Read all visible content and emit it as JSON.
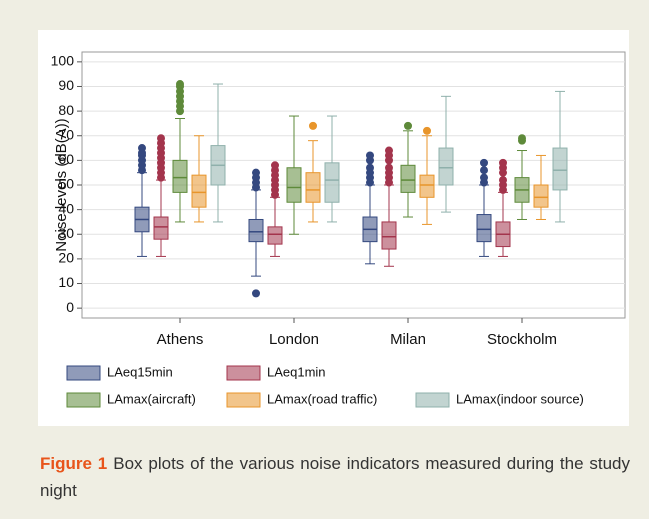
{
  "chart_data": {
    "type": "box",
    "ylabel": "Noise levels (dB(A))",
    "categories": [
      "Athens",
      "London",
      "Milan",
      "Stockholm"
    ],
    "ylim": [
      -4,
      104
    ],
    "yticks": [
      0,
      10,
      20,
      30,
      40,
      50,
      60,
      70,
      80,
      90,
      100
    ],
    "grid": true,
    "series": [
      {
        "name": "LAeq15min",
        "color": "#34487f",
        "boxes": [
          {
            "whislo": 21,
            "q1": 31,
            "med": 36,
            "q3": 41,
            "whishi": 55,
            "fliers": [
              56,
              58,
              60,
              62,
              63,
              65
            ]
          },
          {
            "whislo": 13,
            "q1": 27,
            "med": 31,
            "q3": 36,
            "whishi": 48,
            "fliers": [
              6,
              49,
              51,
              53,
              55
            ]
          },
          {
            "whislo": 18,
            "q1": 27,
            "med": 32,
            "q3": 37,
            "whishi": 50,
            "fliers": [
              51,
              53,
              55,
              57,
              60,
              62
            ]
          },
          {
            "whislo": 21,
            "q1": 27,
            "med": 32,
            "q3": 38,
            "whishi": 50,
            "fliers": [
              51,
              53,
              56,
              59
            ]
          }
        ]
      },
      {
        "name": "LAeq1min",
        "color": "#a3344c",
        "boxes": [
          {
            "whislo": 21,
            "q1": 28,
            "med": 33,
            "q3": 37,
            "whishi": 52,
            "fliers": [
              53,
              55,
              57,
              59,
              61,
              63,
              65,
              67,
              69
            ]
          },
          {
            "whislo": 21,
            "q1": 26,
            "med": 30,
            "q3": 33,
            "whishi": 45,
            "fliers": [
              46,
              48,
              50,
              52,
              54,
              56,
              58
            ]
          },
          {
            "whislo": 17,
            "q1": 24,
            "med": 29,
            "q3": 35,
            "whishi": 50,
            "fliers": [
              51,
              53,
              55,
              57,
              60,
              62,
              64
            ]
          },
          {
            "whislo": 21,
            "q1": 25,
            "med": 30,
            "q3": 35,
            "whishi": 47,
            "fliers": [
              48,
              50,
              52,
              55,
              57,
              59
            ]
          }
        ]
      },
      {
        "name": "LAmax(aircraft)",
        "color": "#5e8a3a",
        "boxes": [
          {
            "whislo": 35,
            "q1": 47,
            "med": 53,
            "q3": 60,
            "whishi": 77,
            "fliers": [
              80,
              82,
              84,
              86,
              88,
              90,
              91
            ]
          },
          {
            "whislo": 30,
            "q1": 43,
            "med": 49,
            "q3": 57,
            "whishi": 78,
            "fliers": []
          },
          {
            "whislo": 37,
            "q1": 47,
            "med": 52,
            "q3": 58,
            "whishi": 72,
            "fliers": [
              74
            ]
          },
          {
            "whislo": 36,
            "q1": 43,
            "med": 48,
            "q3": 53,
            "whishi": 64,
            "fliers": [
              68,
              69
            ]
          }
        ]
      },
      {
        "name": "LAmax(road traffic)",
        "color": "#e8952b",
        "boxes": [
          {
            "whislo": 35,
            "q1": 41,
            "med": 47,
            "q3": 54,
            "whishi": 70,
            "fliers": []
          },
          {
            "whislo": 35,
            "q1": 43,
            "med": 48,
            "q3": 55,
            "whishi": 68,
            "fliers": [
              74
            ]
          },
          {
            "whislo": 34,
            "q1": 45,
            "med": 50,
            "q3": 54,
            "whishi": 70,
            "fliers": [
              72
            ]
          },
          {
            "whislo": 36,
            "q1": 41,
            "med": 45,
            "q3": 50,
            "whishi": 62,
            "fliers": []
          }
        ]
      },
      {
        "name": "LAmax(indoor source)",
        "color": "#8fb0ab",
        "boxes": [
          {
            "whislo": 35,
            "q1": 50,
            "med": 58,
            "q3": 66,
            "whishi": 91,
            "fliers": []
          },
          {
            "whislo": 35,
            "q1": 43,
            "med": 52,
            "q3": 59,
            "whishi": 78,
            "fliers": []
          },
          {
            "whislo": 39,
            "q1": 50,
            "med": 57,
            "q3": 65,
            "whishi": 86,
            "fliers": []
          },
          {
            "whislo": 35,
            "q1": 48,
            "med": 56,
            "q3": 65,
            "whishi": 88,
            "fliers": []
          }
        ]
      }
    ]
  },
  "caption": {
    "label": "Figure 1",
    "text": "Box plots of the various noise indicators measured during the study night"
  }
}
